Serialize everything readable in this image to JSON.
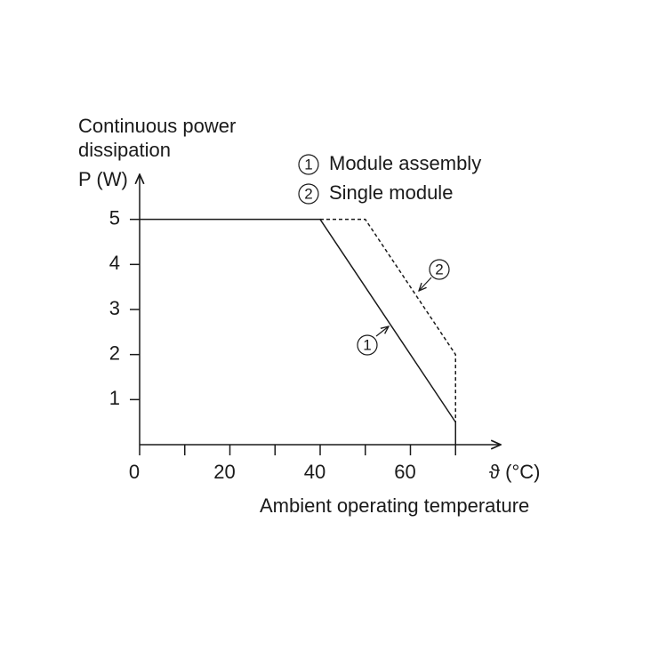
{
  "chart_data": {
    "type": "line",
    "ylabel": [
      "Continuous power",
      "dissipation",
      "P (W)"
    ],
    "xlabel": "Ambient operating temperature",
    "xunit": "ϑ (°C)",
    "xlim": [
      0,
      80
    ],
    "ylim": [
      0,
      6
    ],
    "xticks": [
      0,
      20,
      40,
      60
    ],
    "minor_xticks": [
      10,
      30,
      50,
      70
    ],
    "yticks": [
      1,
      2,
      3,
      4,
      5
    ],
    "series": [
      {
        "name": "Module assembly",
        "marker": "1",
        "color": "#1a1a1a",
        "dash": false,
        "x": [
          0,
          40,
          70,
          70
        ],
        "values": [
          5,
          5,
          0.5,
          0
        ]
      },
      {
        "name": "Single module",
        "marker": "2",
        "color": "#1a1a1a",
        "dash": true,
        "x": [
          40,
          50,
          70,
          70
        ],
        "values": [
          5,
          5,
          2,
          0.5
        ]
      }
    ]
  }
}
